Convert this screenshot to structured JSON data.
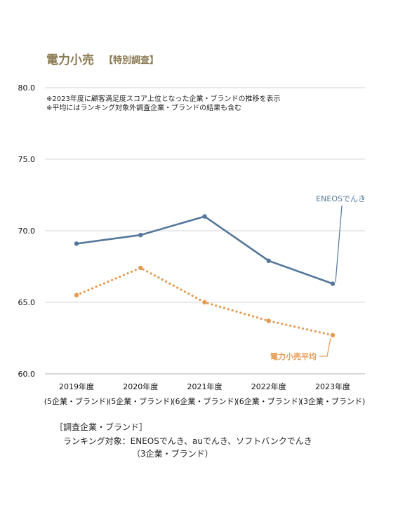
{
  "header": {
    "title": "電力小売",
    "subtitle": "【特別調査】"
  },
  "notes": [
    "※2023年度に顧客満足度スコア上位となった企業・ブランドの推移を表示",
    "※平均にはランキング対象外調査企業・ブランドの結果も含む"
  ],
  "footer": {
    "heading": "［調査企業・ブランド］",
    "line1": "ランキング対象：ENEOSでんき、auでんき、ソフトバンクでんき",
    "line2": "（3企業・ブランド）"
  },
  "chart_data": {
    "type": "line",
    "categories": [
      "2019年度",
      "2020年度",
      "2021年度",
      "2022年度",
      "2023年度"
    ],
    "category_notes": [
      "(5企業・ブランド)",
      "(5企業・ブランド)",
      "(6企業・ブランド)",
      "(6企業・ブランド)",
      "(3企業・ブランド)"
    ],
    "series": [
      {
        "name": "ENEOSでんき",
        "values": [
          69.1,
          69.7,
          71.0,
          67.9,
          66.3
        ],
        "color": "#55779b",
        "style": "solid"
      },
      {
        "name": "電力小売平均",
        "values": [
          65.5,
          67.4,
          65.0,
          63.7,
          62.7
        ],
        "color": "#e49a52",
        "style": "dotted"
      }
    ],
    "yticks": [
      80.0,
      75.0,
      70.0,
      65.0,
      60.0
    ],
    "ylim": [
      60,
      80
    ],
    "grid": true
  }
}
